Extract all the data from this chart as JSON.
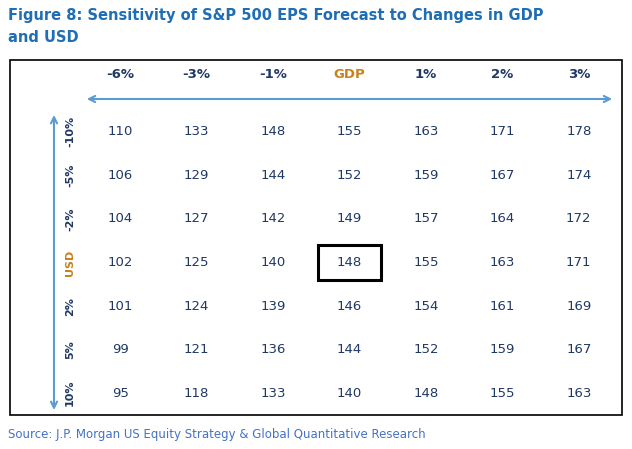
{
  "title_line1": "Figure 8: Sensitivity of S&P 500 EPS Forecast to Changes in GDP",
  "title_line2": "and USD",
  "title_color": "#1F6DB5",
  "title_fontsize": 10.5,
  "gdp_cols": [
    "-6%",
    "-3%",
    "-1%",
    "GDP",
    "1%",
    "2%",
    "3%"
  ],
  "usd_rows": [
    "-10%",
    "-5%",
    "-2%",
    "USD",
    "2%",
    "5%",
    "10%"
  ],
  "table_data": [
    [
      110,
      133,
      148,
      155,
      163,
      171,
      178
    ],
    [
      106,
      129,
      144,
      152,
      159,
      167,
      174
    ],
    [
      104,
      127,
      142,
      149,
      157,
      164,
      172
    ],
    [
      102,
      125,
      140,
      148,
      155,
      163,
      171
    ],
    [
      101,
      124,
      139,
      146,
      154,
      161,
      169
    ],
    [
      99,
      121,
      136,
      144,
      152,
      159,
      167
    ],
    [
      95,
      118,
      133,
      140,
      148,
      155,
      163
    ]
  ],
  "highlight_row": 3,
  "highlight_col": 3,
  "header_color": "#1F3864",
  "data_color": "#1F3864",
  "gdp_header_color": "#C8821A",
  "usd_header_color": "#C8821A",
  "source_text": "Source: J.P. Morgan US Equity Strategy & Global Quantitative Research",
  "source_color": "#4472C4",
  "source_fontsize": 8.5,
  "background_color": "#FFFFFF",
  "border_color": "#000000",
  "arrow_color": "#5B9BD5",
  "col_header_gdp_color": "#C8821A",
  "col_header_other_color": "#1F3864"
}
